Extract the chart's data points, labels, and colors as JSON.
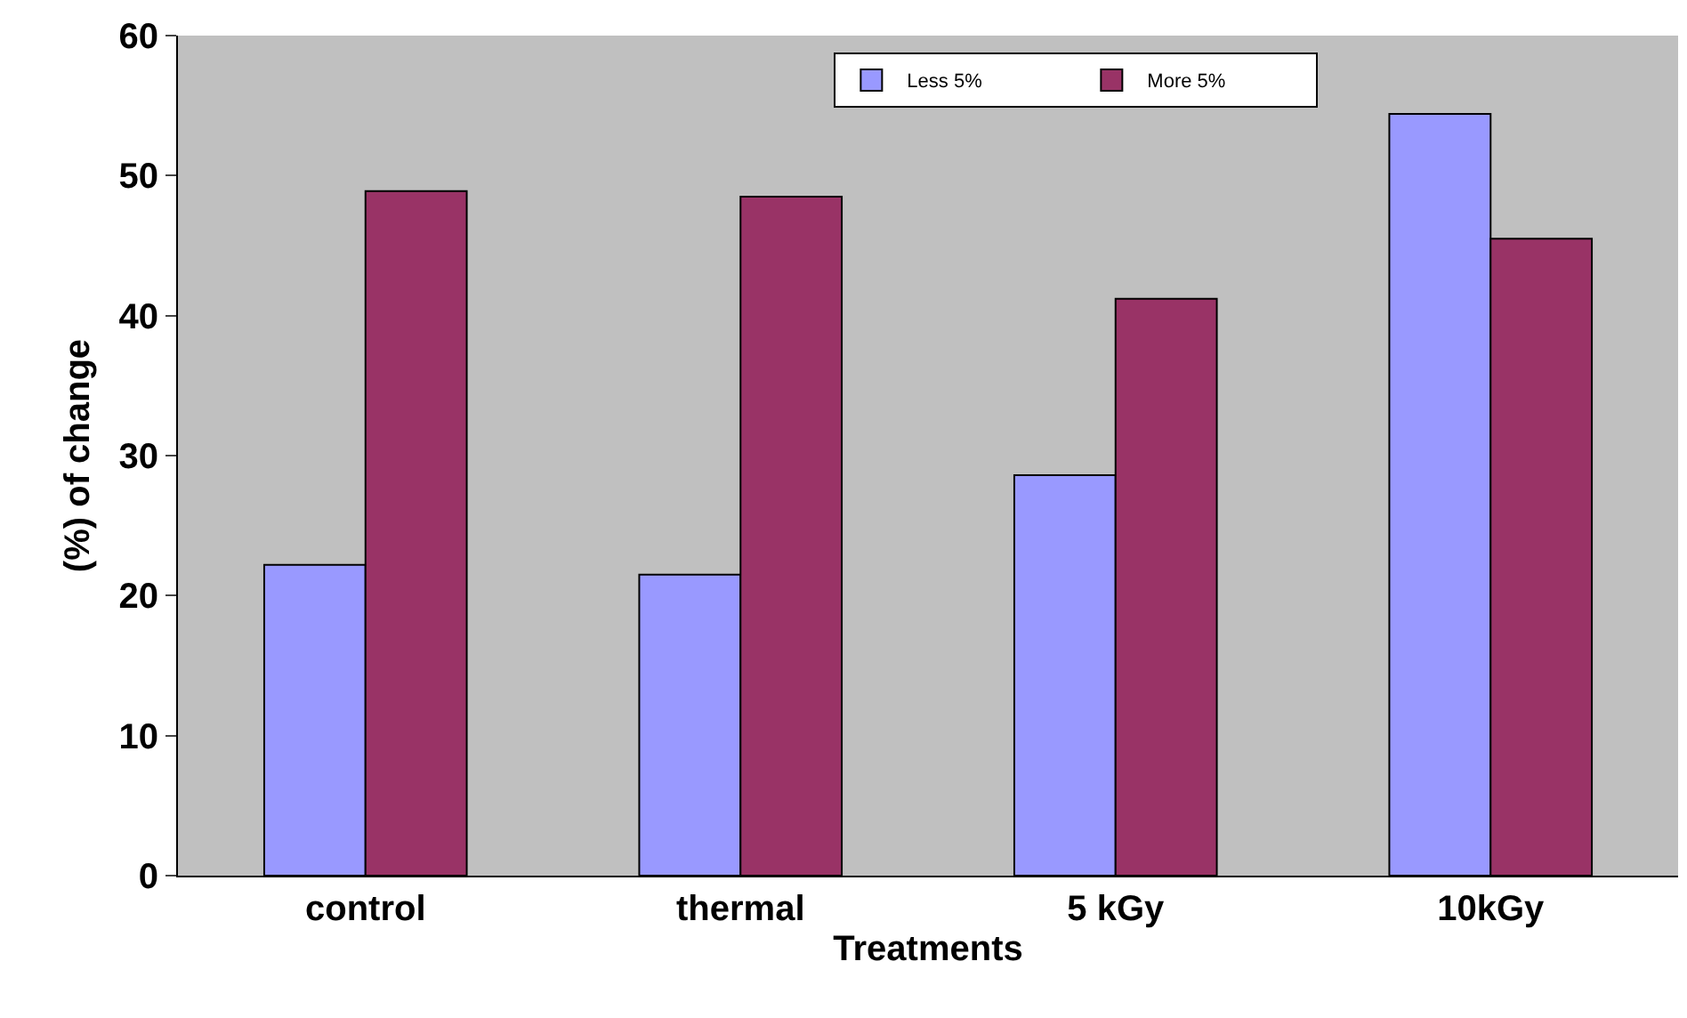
{
  "chart_data": {
    "type": "bar",
    "xlabel": "Treatments",
    "ylabel": "(%) of change",
    "categories": [
      "control",
      "thermal",
      "5 kGy",
      "10kGy"
    ],
    "series": [
      {
        "name": "Less 5%",
        "color": "#9999ff",
        "values": [
          22.2,
          21.5,
          28.6,
          54.4
        ]
      },
      {
        "name": "More 5%",
        "color": "#993366",
        "values": [
          48.9,
          48.5,
          41.2,
          45.5
        ]
      }
    ],
    "ylim": [
      0,
      60
    ],
    "yticks": [
      0,
      10,
      20,
      30,
      40,
      50,
      60
    ],
    "grid": false,
    "legend": "top right"
  }
}
